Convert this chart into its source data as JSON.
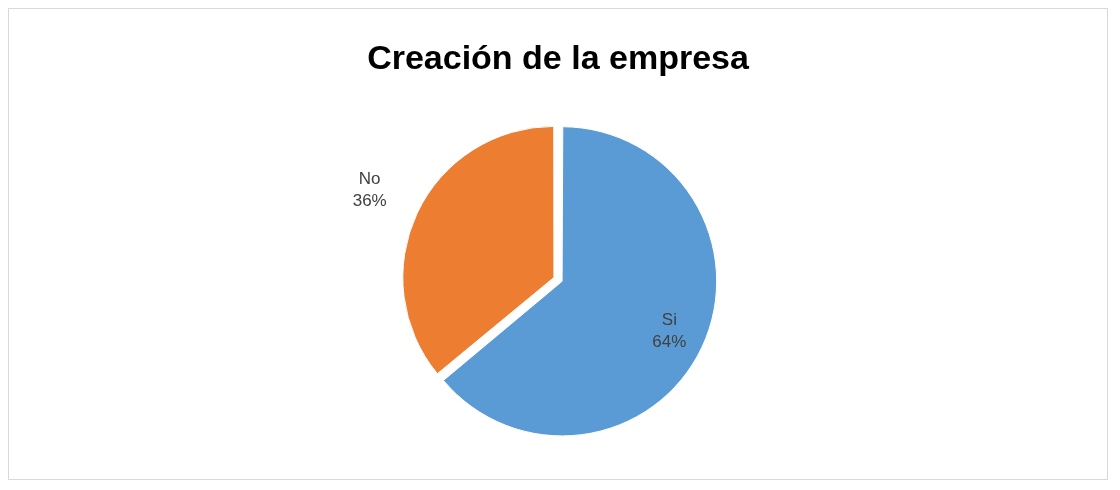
{
  "chart_data": {
    "type": "pie",
    "title": "Creación de la empresa",
    "categories": [
      "Si",
      "No"
    ],
    "values": [
      64,
      36
    ],
    "colors": [
      "#5b9bd5",
      "#ed7d31"
    ],
    "value_labels": [
      "64%",
      "36%"
    ],
    "legend": false
  }
}
